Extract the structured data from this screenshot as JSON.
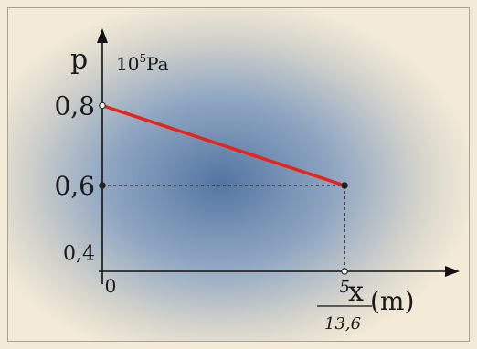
{
  "chart_data": {
    "type": "line",
    "title": "",
    "ylabel": "p",
    "yunit_base": "10",
    "yunit_exp": "5",
    "yunit_tail": "Pa",
    "xlabel": "x",
    "xunit": "(m)",
    "x_ticks": [
      "0",
      "5"
    ],
    "x_tick_fraction_denominator": "13,6",
    "y_ticks": [
      "0,4",
      "0,6",
      "0,8"
    ],
    "xlim": [
      0,
      7.3
    ],
    "ylim": [
      0.385,
      0.975
    ],
    "series": [
      {
        "x": [
          0,
          5
        ],
        "y": [
          0.8,
          0.6
        ],
        "color": "#e8231c"
      }
    ],
    "guide_point": {
      "x": 5,
      "y": 0.6
    },
    "grid": false,
    "legend": "none"
  }
}
